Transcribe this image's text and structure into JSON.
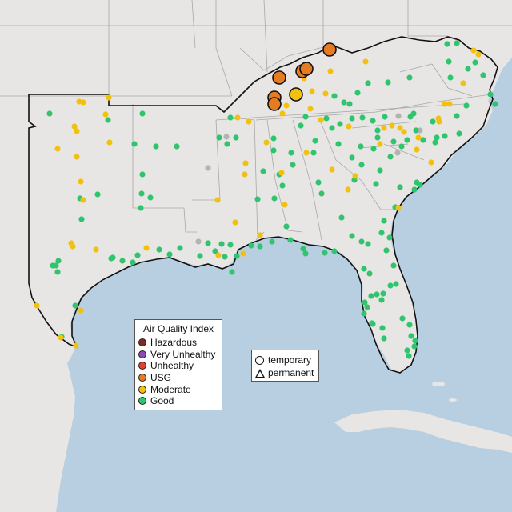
{
  "map": {
    "land_color": "#e8e6e4",
    "water_color": "#b8cfe1",
    "boundary_color": "#111111",
    "state_line_color": "#a8a8a8",
    "no_data_color": "#b3b3b3"
  },
  "legend": {
    "title": "Air Quality Index",
    "categories": [
      {
        "label": "Hazardous",
        "color": "#7e2b24"
      },
      {
        "label": "Very Unhealthy",
        "color": "#8c4bb0"
      },
      {
        "label": "Unhealthy",
        "color": "#e5402f"
      },
      {
        "label": "USG",
        "color": "#e57c22"
      },
      {
        "label": "Moderate",
        "color": "#f2c10f"
      },
      {
        "label": "Good",
        "color": "#2fc46d"
      }
    ]
  },
  "type_legend": {
    "temporary": "temporary",
    "permanent": "permanent"
  },
  "monitors": {
    "usg_large": [
      [
        412,
        62
      ],
      [
        378,
        89
      ],
      [
        383,
        86
      ],
      [
        349,
        97
      ],
      [
        343,
        122
      ],
      [
        343,
        130
      ]
    ],
    "moderate_large": [
      [
        370,
        118
      ]
    ],
    "moderate": [
      [
        457,
        77
      ],
      [
        413,
        89
      ],
      [
        380,
        98
      ],
      [
        390,
        114
      ],
      [
        407,
        117
      ],
      [
        358,
        132
      ],
      [
        353,
        142
      ],
      [
        388,
        136
      ],
      [
        297,
        147
      ],
      [
        311,
        152
      ],
      [
        333,
        178
      ],
      [
        307,
        204
      ],
      [
        306,
        218
      ],
      [
        272,
        250
      ],
      [
        294,
        278
      ],
      [
        325,
        294
      ],
      [
        304,
        317
      ],
      [
        273,
        319
      ],
      [
        356,
        256
      ],
      [
        352,
        216
      ],
      [
        383,
        191
      ],
      [
        415,
        212
      ],
      [
        435,
        237
      ],
      [
        444,
        220
      ],
      [
        401,
        150
      ],
      [
        436,
        158
      ],
      [
        480,
        160
      ],
      [
        490,
        157
      ],
      [
        505,
        165
      ],
      [
        500,
        160
      ],
      [
        548,
        148
      ],
      [
        549,
        152
      ],
      [
        475,
        180
      ],
      [
        523,
        172
      ],
      [
        539,
        203
      ],
      [
        498,
        260
      ],
      [
        592,
        63
      ],
      [
        598,
        68
      ],
      [
        579,
        104
      ],
      [
        99,
        127
      ],
      [
        104,
        128
      ],
      [
        136,
        122
      ],
      [
        132,
        143
      ],
      [
        93,
        158
      ],
      [
        96,
        164
      ],
      [
        72,
        186
      ],
      [
        96,
        196
      ],
      [
        137,
        178
      ],
      [
        101,
        227
      ],
      [
        104,
        250
      ],
      [
        89,
        304
      ],
      [
        91,
        308
      ],
      [
        120,
        312
      ],
      [
        183,
        310
      ],
      [
        101,
        388
      ],
      [
        46,
        382
      ],
      [
        76,
        422
      ],
      [
        95,
        432
      ],
      [
        556,
        130
      ],
      [
        562,
        130
      ],
      [
        521,
        187
      ]
    ],
    "good": [
      [
        561,
        77
      ],
      [
        559,
        55
      ],
      [
        571,
        54
      ],
      [
        594,
        78
      ],
      [
        604,
        94
      ],
      [
        585,
        86
      ],
      [
        563,
        97
      ],
      [
        512,
        97
      ],
      [
        485,
        103
      ],
      [
        460,
        104
      ],
      [
        447,
        116
      ],
      [
        437,
        130
      ],
      [
        418,
        120
      ],
      [
        430,
        128
      ],
      [
        382,
        146
      ],
      [
        408,
        148
      ],
      [
        415,
        160
      ],
      [
        425,
        155
      ],
      [
        440,
        148
      ],
      [
        453,
        147
      ],
      [
        466,
        151
      ],
      [
        481,
        146
      ],
      [
        513,
        146
      ],
      [
        517,
        142
      ],
      [
        541,
        152
      ],
      [
        571,
        145
      ],
      [
        583,
        132
      ],
      [
        613,
        118
      ],
      [
        619,
        130
      ],
      [
        574,
        167
      ],
      [
        556,
        170
      ],
      [
        529,
        175
      ],
      [
        502,
        183
      ],
      [
        488,
        196
      ],
      [
        472,
        172
      ],
      [
        467,
        186
      ],
      [
        451,
        183
      ],
      [
        440,
        197
      ],
      [
        423,
        180
      ],
      [
        394,
        176
      ],
      [
        392,
        191
      ],
      [
        364,
        191
      ],
      [
        366,
        206
      ],
      [
        342,
        173
      ],
      [
        342,
        188
      ],
      [
        329,
        214
      ],
      [
        349,
        218
      ],
      [
        353,
        232
      ],
      [
        343,
        248
      ],
      [
        322,
        249
      ],
      [
        358,
        283
      ],
      [
        363,
        300
      ],
      [
        379,
        311
      ],
      [
        382,
        317
      ],
      [
        406,
        316
      ],
      [
        418,
        314
      ],
      [
        440,
        295
      ],
      [
        427,
        272
      ],
      [
        402,
        242
      ],
      [
        398,
        228
      ],
      [
        443,
        225
      ],
      [
        452,
        206
      ],
      [
        475,
        213
      ],
      [
        470,
        230
      ],
      [
        500,
        234
      ],
      [
        518,
        237
      ],
      [
        521,
        228
      ],
      [
        494,
        259
      ],
      [
        480,
        276
      ],
      [
        477,
        291
      ],
      [
        487,
        297
      ],
      [
        483,
        313
      ],
      [
        460,
        305
      ],
      [
        452,
        302
      ],
      [
        455,
        336
      ],
      [
        462,
        342
      ],
      [
        492,
        332
      ],
      [
        495,
        355
      ],
      [
        488,
        357
      ],
      [
        479,
        367
      ],
      [
        471,
        368
      ],
      [
        477,
        375
      ],
      [
        464,
        370
      ],
      [
        456,
        378
      ],
      [
        459,
        384
      ],
      [
        455,
        392
      ],
      [
        465,
        404
      ],
      [
        478,
        410
      ],
      [
        503,
        398
      ],
      [
        512,
        406
      ],
      [
        514,
        420
      ],
      [
        519,
        426
      ],
      [
        518,
        433
      ],
      [
        509,
        438
      ],
      [
        511,
        445
      ],
      [
        466,
        405
      ],
      [
        480,
        423
      ],
      [
        472,
        163
      ],
      [
        492,
        177
      ],
      [
        520,
        163
      ],
      [
        509,
        175
      ],
      [
        546,
        172
      ],
      [
        544,
        178
      ],
      [
        525,
        231
      ],
      [
        296,
        320
      ],
      [
        281,
        321
      ],
      [
        269,
        314
      ],
      [
        277,
        305
      ],
      [
        250,
        320
      ],
      [
        260,
        304
      ],
      [
        288,
        306
      ],
      [
        314,
        307
      ],
      [
        340,
        302
      ],
      [
        325,
        308
      ],
      [
        290,
        340
      ],
      [
        225,
        310
      ],
      [
        212,
        318
      ],
      [
        199,
        312
      ],
      [
        172,
        319
      ],
      [
        166,
        328
      ],
      [
        153,
        326
      ],
      [
        141,
        322
      ],
      [
        139,
        323
      ],
      [
        178,
        218
      ],
      [
        177,
        242
      ],
      [
        188,
        247
      ],
      [
        176,
        260
      ],
      [
        168,
        180
      ],
      [
        195,
        183
      ],
      [
        221,
        183
      ],
      [
        178,
        142
      ],
      [
        135,
        150
      ],
      [
        62,
        142
      ],
      [
        122,
        243
      ],
      [
        102,
        274
      ],
      [
        100,
        248
      ],
      [
        94,
        382
      ],
      [
        70,
        332
      ],
      [
        66,
        332
      ],
      [
        72,
        340
      ],
      [
        73,
        326
      ],
      [
        77,
        421
      ],
      [
        274,
        172
      ],
      [
        284,
        180
      ],
      [
        288,
        147
      ],
      [
        376,
        157
      ],
      [
        295,
        172
      ]
    ],
    "no_data": [
      [
        283,
        171
      ],
      [
        260,
        210
      ],
      [
        248,
        302
      ],
      [
        525,
        163
      ],
      [
        497,
        191
      ],
      [
        498,
        145
      ]
    ]
  }
}
